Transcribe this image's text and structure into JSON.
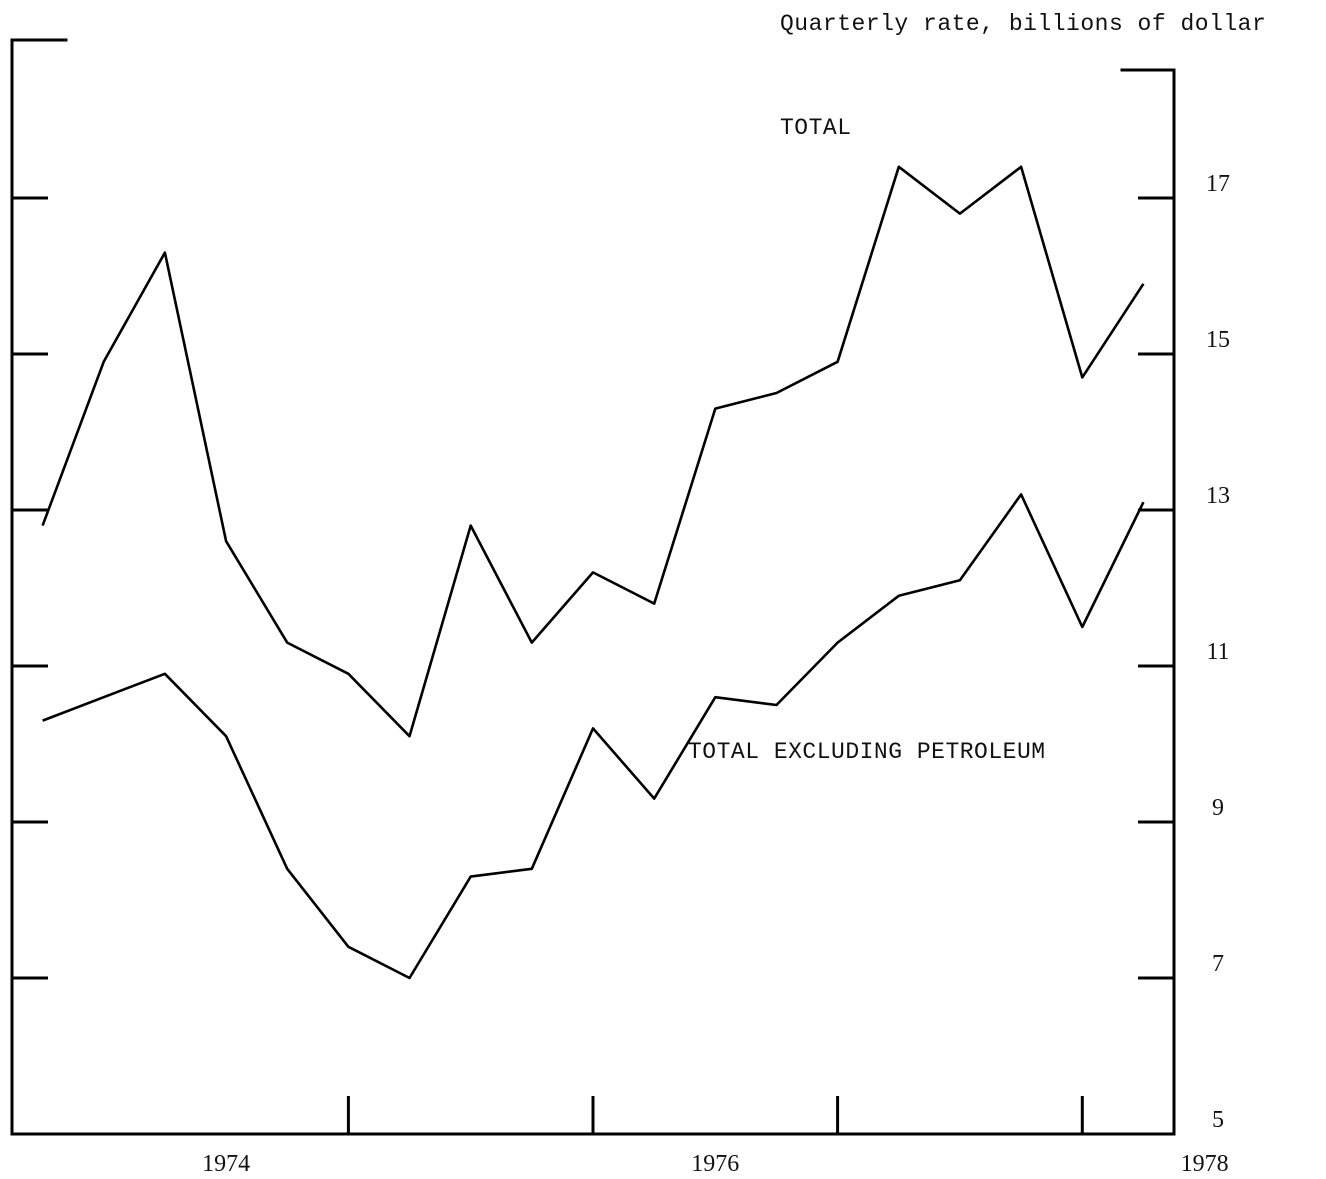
{
  "chart_data": {
    "type": "line",
    "ylabel": "Quarterly rate, billions of dollar",
    "ylim": [
      5,
      19
    ],
    "yticks": [
      5,
      7,
      9,
      11,
      13,
      15,
      17
    ],
    "ytick_labels": [
      "5",
      "7",
      "9",
      "11",
      "13",
      "15",
      "17"
    ],
    "xlim": [
      1973.625,
      1978.375
    ],
    "year_labels": [
      {
        "year": 1974,
        "label": "1974"
      },
      {
        "year": 1976,
        "label": "1976"
      },
      {
        "year": 1978,
        "label": "1978"
      }
    ],
    "year_boundaries": [
      1975,
      1976,
      1977,
      1978
    ],
    "x": [
      1973.75,
      1974.0,
      1974.25,
      1974.5,
      1974.75,
      1975.0,
      1975.25,
      1975.5,
      1975.75,
      1976.0,
      1976.25,
      1976.5,
      1976.75,
      1977.0,
      1977.25,
      1977.5,
      1977.75,
      1978.0,
      1978.25
    ],
    "series": [
      {
        "name": "TOTAL",
        "values": [
          12.8,
          14.9,
          16.3,
          12.6,
          11.3,
          10.9,
          10.1,
          12.8,
          11.3,
          12.2,
          11.8,
          14.3,
          14.5,
          14.9,
          17.4,
          16.8,
          17.4,
          14.7,
          15.9
        ]
      },
      {
        "name": "TOTAL EXCLUDING PETROLEUM",
        "values": [
          10.3,
          10.6,
          10.9,
          10.1,
          8.4,
          7.4,
          7.0,
          8.3,
          8.4,
          10.2,
          9.3,
          10.6,
          10.5,
          11.3,
          11.9,
          12.1,
          13.2,
          11.5,
          13.1
        ]
      }
    ]
  }
}
